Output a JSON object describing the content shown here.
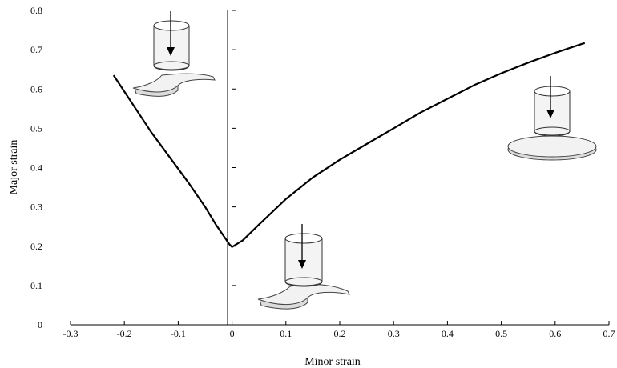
{
  "chart_data": {
    "type": "line",
    "title": "",
    "xlabel": "Minor strain",
    "ylabel": "Major strain",
    "xlim": [
      -0.3,
      0.7
    ],
    "ylim": [
      0,
      0.8
    ],
    "x_ticks": [
      "-0.3",
      "-0.2",
      "-0.1",
      "0",
      "0.1",
      "0.2",
      "0.3",
      "0.4",
      "0.5",
      "0.6",
      "0.7"
    ],
    "y_ticks": [
      "0",
      "0.1",
      "0.2",
      "0.3",
      "0.4",
      "0.5",
      "0.6",
      "0.7",
      "0.8"
    ],
    "grid": false,
    "series": [
      {
        "x": [
          -0.22,
          -0.15,
          -0.08,
          -0.05,
          -0.03,
          -0.015,
          -0.005,
          0,
          0.02,
          0.05,
          0.1,
          0.15,
          0.2,
          0.25,
          0.3,
          0.35,
          0.4,
          0.45,
          0.5,
          0.55,
          0.6,
          0.65,
          0.655
        ],
        "y": [
          0.635,
          0.49,
          0.36,
          0.3,
          0.255,
          0.225,
          0.205,
          0.198,
          0.215,
          0.255,
          0.32,
          0.375,
          0.42,
          0.46,
          0.5,
          0.54,
          0.575,
          0.61,
          0.64,
          0.667,
          0.692,
          0.715,
          0.717
        ]
      }
    ],
    "illustrations": [
      "punch-uniaxial-icon",
      "punch-plane-strain-icon",
      "punch-biaxial-icon"
    ]
  }
}
